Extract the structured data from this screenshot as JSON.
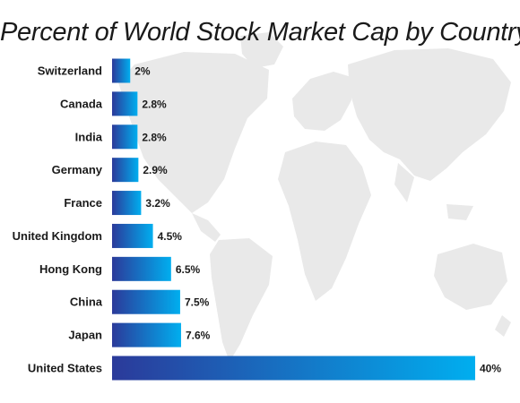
{
  "colors": {
    "bar_start": "#2b3a9a",
    "bar_end": "#00aeef",
    "map": "#e9e9e9",
    "text": "#1a1a1a"
  },
  "chart_data": {
    "type": "bar",
    "orientation": "horizontal",
    "title": "Percent of World Stock Market Cap by Country",
    "categories": [
      "Switzerland",
      "Canada",
      "India",
      "Germany",
      "France",
      "United Kingdom",
      "Hong Kong",
      "China",
      "Japan",
      "United States"
    ],
    "values": [
      2,
      2.8,
      2.8,
      2.9,
      3.2,
      4.5,
      6.5,
      7.5,
      7.6,
      40
    ],
    "value_labels": [
      "2%",
      "2.8%",
      "2.8%",
      "2.9%",
      "3.2%",
      "4.5%",
      "6.5%",
      "7.5%",
      "7.6%",
      "40%"
    ],
    "xlim": [
      0,
      40
    ],
    "grid": false,
    "legend": "none"
  }
}
